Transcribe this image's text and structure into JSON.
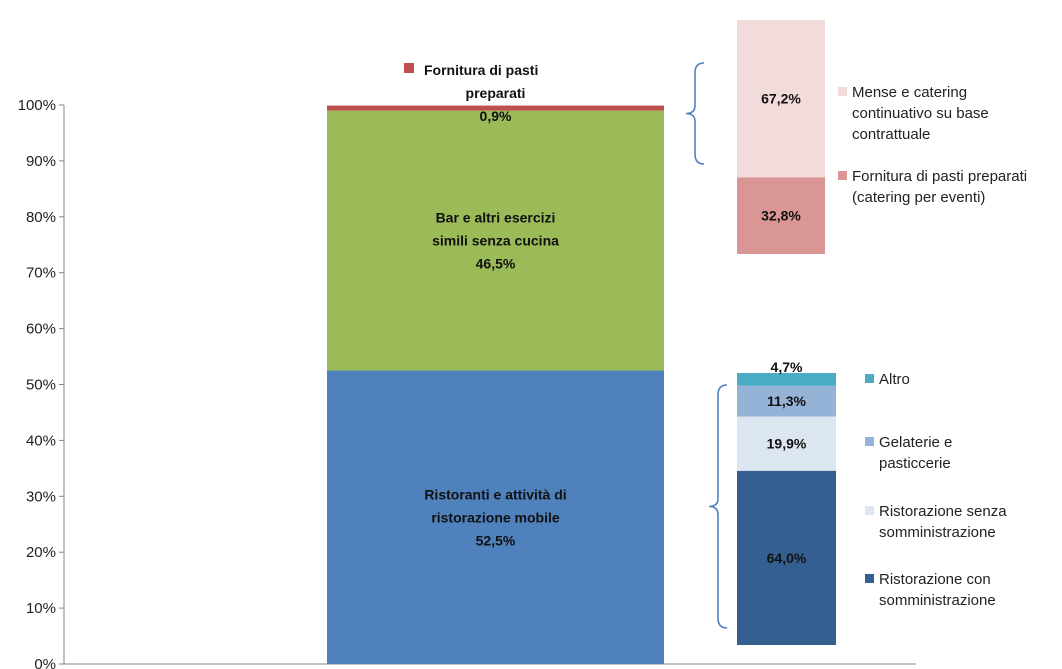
{
  "chart_data": [
    {
      "type": "bar",
      "stacked": true,
      "ylim": [
        0,
        100
      ],
      "yticks": [
        "0%",
        "10%",
        "20%",
        "30%",
        "40%",
        "50%",
        "60%",
        "70%",
        "80%",
        "90%",
        "100%"
      ],
      "series": [
        {
          "name": "Ristoranti e attività di ristorazione mobile",
          "value": 52.5,
          "label_lines": [
            "Ristoranti e attività di",
            "ristorazione mobile",
            "52,5%"
          ],
          "color": "#4f81bd"
        },
        {
          "name": "Bar e altri esercizi simili senza cucina",
          "value": 46.5,
          "label_lines": [
            "Bar e altri esercizi",
            "simili senza cucina",
            "46,5%"
          ],
          "color": "#9bbb59"
        },
        {
          "name": "Fornitura di pasti preparati",
          "value": 0.9,
          "label_lines": [
            "Fornitura di pasti",
            "preparati",
            "0,9%"
          ],
          "color": "#c0504d"
        }
      ]
    },
    {
      "type": "bar",
      "stacked": true,
      "breakdown_of": "Fornitura di pasti preparati",
      "series": [
        {
          "name": "Fornitura di pasti preparati (catering per eventi)",
          "value": 32.8,
          "label": "32,8%",
          "legend_lines": [
            "Fornitura di pasti preparati",
            "(catering per eventi)"
          ],
          "color": "#d99694"
        },
        {
          "name": "Mense e catering continuativo su base contrattuale",
          "value": 67.2,
          "label": "67,2%",
          "legend_lines": [
            "Mense e catering",
            "continuativo su base",
            "contrattuale"
          ],
          "color": "#f2dcdb"
        }
      ]
    },
    {
      "type": "bar",
      "stacked": true,
      "breakdown_of": "Ristoranti e attività di ristorazione mobile",
      "series": [
        {
          "name": "Ristorazione con somministrazione",
          "value": 64.0,
          "label": "64,0%",
          "legend_lines": [
            "Ristorazione con",
            "somministrazione"
          ],
          "color": "#365f91"
        },
        {
          "name": "Ristorazione senza somministrazione",
          "value": 19.9,
          "label": "19,9%",
          "legend_lines": [
            "Ristorazione senza",
            "somministrazione"
          ],
          "color": "#dce6f1"
        },
        {
          "name": "Gelaterie e pasticcerie",
          "value": 11.3,
          "label": "11,3%",
          "legend_lines": [
            "Gelaterie e",
            "pasticcerie"
          ],
          "color": "#95b3d7"
        },
        {
          "name": "Altro",
          "value": 4.7,
          "label": "4,7%",
          "legend_lines": [
            "Altro"
          ],
          "color": "#4bacc6"
        }
      ]
    }
  ]
}
